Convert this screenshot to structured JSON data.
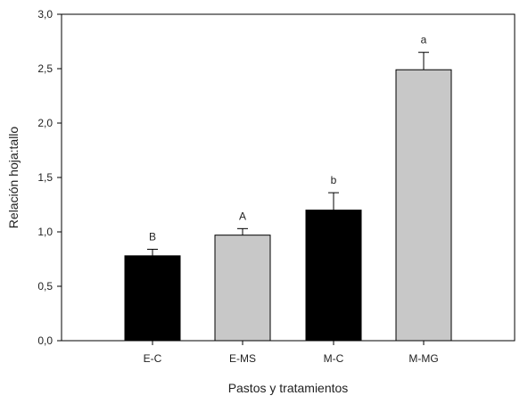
{
  "chart_data": {
    "type": "bar",
    "title": "",
    "xlabel": "Pastos y tratamientos",
    "ylabel": "Relación hoja:tallo",
    "ylim": [
      0,
      3.0
    ],
    "yticks": [
      "0,0",
      "0,5",
      "1,0",
      "1,5",
      "2,0",
      "2,5",
      "3,0"
    ],
    "ytick_values": [
      0,
      0.5,
      1.0,
      1.5,
      2.0,
      2.5,
      3.0
    ],
    "grid": false,
    "categories": [
      "E-C",
      "E-MS",
      "M-C",
      "M-MG"
    ],
    "values": [
      0.78,
      0.97,
      1.2,
      2.49
    ],
    "errors": [
      0.06,
      0.06,
      0.16,
      0.16
    ],
    "letters": [
      "B",
      "A",
      "b",
      "a"
    ],
    "colors": [
      "#000000",
      "#c8c8c8",
      "#000000",
      "#c8c8c8"
    ]
  }
}
